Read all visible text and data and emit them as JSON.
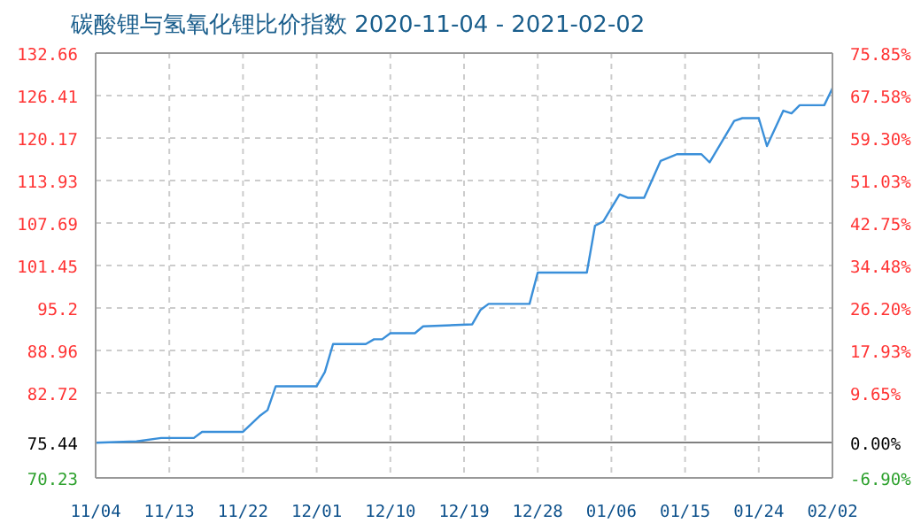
{
  "chart_data": {
    "type": "line",
    "title": "碳酸锂与氢氧化锂比价指数 2020-11-04 - 2021-02-02",
    "x": [
      "2020-11-04",
      "2020-11-09",
      "2020-11-12",
      "2020-11-16",
      "2020-11-17",
      "2020-11-22",
      "2020-11-24",
      "2020-11-25",
      "2020-11-26",
      "2020-12-01",
      "2020-12-02",
      "2020-12-03",
      "2020-12-07",
      "2020-12-08",
      "2020-12-09",
      "2020-12-10",
      "2020-12-13",
      "2020-12-14",
      "2020-12-20",
      "2020-12-21",
      "2020-12-22",
      "2020-12-27",
      "2020-12-28",
      "2021-01-03",
      "2021-01-04",
      "2021-01-05",
      "2021-01-07",
      "2021-01-08",
      "2021-01-10",
      "2021-01-12",
      "2021-01-14",
      "2021-01-17",
      "2021-01-18",
      "2021-01-21",
      "2021-01-22",
      "2021-01-24",
      "2021-01-25",
      "2021-01-27",
      "2021-01-28",
      "2021-01-29",
      "2021-02-01",
      "2021-02-02"
    ],
    "series": [
      {
        "color": "#3a8fd9",
        "values": [
          75.4,
          75.6,
          76.1,
          76.1,
          77.0,
          77.0,
          79.3,
          80.2,
          83.7,
          83.7,
          85.8,
          89.9,
          89.9,
          90.6,
          90.6,
          91.5,
          91.5,
          92.5,
          92.8,
          94.9,
          95.8,
          95.8,
          100.4,
          100.4,
          107.3,
          107.9,
          111.9,
          111.4,
          111.4,
          116.8,
          117.8,
          117.8,
          116.6,
          122.7,
          123.1,
          123.1,
          119.0,
          124.2,
          123.8,
          125.0,
          125.0,
          127.5
        ]
      }
    ],
    "xlim": [
      "2020-11-04",
      "2021-02-02"
    ],
    "xticks": [
      {
        "value": "2020-11-04",
        "label": "11/04"
      },
      {
        "value": "2020-11-13",
        "label": "11/13"
      },
      {
        "value": "2020-11-22",
        "label": "11/22"
      },
      {
        "value": "2020-12-01",
        "label": "12/01"
      },
      {
        "value": "2020-12-10",
        "label": "12/10"
      },
      {
        "value": "2020-12-19",
        "label": "12/19"
      },
      {
        "value": "2020-12-28",
        "label": "12/28"
      },
      {
        "value": "2021-01-06",
        "label": "01/06"
      },
      {
        "value": "2021-01-15",
        "label": "01/15"
      },
      {
        "value": "2021-01-24",
        "label": "01/24"
      },
      {
        "value": "2021-02-02",
        "label": "02/02"
      }
    ],
    "ylim": [
      70.23,
      132.66
    ],
    "yticks": [
      70.23,
      75.44,
      82.72,
      88.96,
      95.2,
      101.45,
      107.69,
      113.93,
      120.17,
      126.41,
      132.66
    ],
    "y2lim": [
      -6.9,
      75.85
    ],
    "y2ticks": [
      {
        "value": -6.9,
        "label": "-6.90%"
      },
      {
        "value": 0,
        "label": "0.00%"
      },
      {
        "value": 9.65,
        "label": "9.65%"
      },
      {
        "value": 17.93,
        "label": "17.93%"
      },
      {
        "value": 26.2,
        "label": "26.20%"
      },
      {
        "value": 34.48,
        "label": "34.48%"
      },
      {
        "value": 42.75,
        "label": "42.75%"
      },
      {
        "value": 51.03,
        "label": "51.03%"
      },
      {
        "value": 59.3,
        "label": "59.30%"
      },
      {
        "value": 67.58,
        "label": "67.58%"
      },
      {
        "value": 75.85,
        "label": "75.85%"
      }
    ],
    "ref_lines": [
      {
        "axis": "y",
        "value": 75.44,
        "color": "#808080"
      }
    ],
    "grid": true,
    "marker": "none"
  }
}
